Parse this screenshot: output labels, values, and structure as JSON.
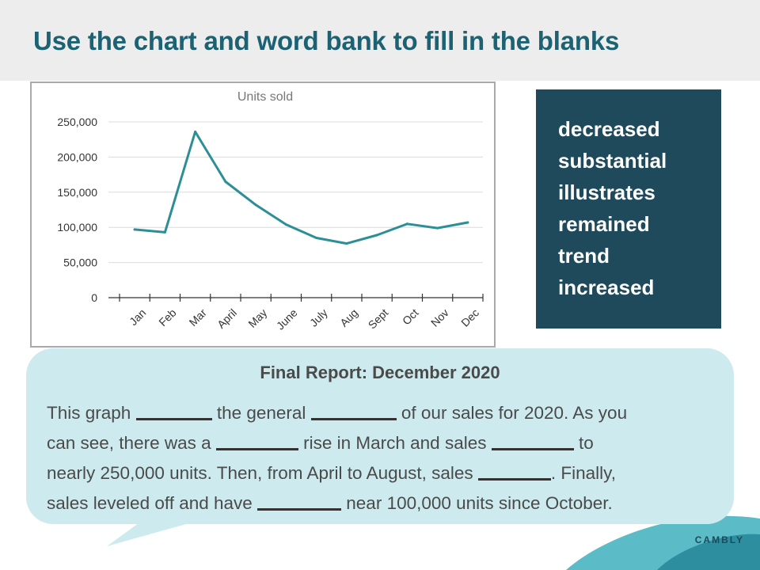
{
  "header": {
    "title": "Use the chart and word bank to fill in the blanks"
  },
  "chart_data": {
    "type": "line",
    "title": "Units sold",
    "categories": [
      "Jan",
      "Feb",
      "Mar",
      "April",
      "May",
      "June",
      "July",
      "Aug",
      "Sept",
      "Oct",
      "Nov",
      "Dec"
    ],
    "series": [
      {
        "values": [
          97000,
          93000,
          236000,
          165000,
          132000,
          104000,
          85000,
          77000,
          89000,
          105000,
          99000,
          107000
        ]
      }
    ],
    "ylim": [
      0,
      250000
    ],
    "yticks": [
      0,
      50000,
      100000,
      150000,
      200000,
      250000
    ],
    "ytick_labels": [
      "0",
      "50,000",
      "100,000",
      "150,000",
      "200,000",
      "250,000"
    ],
    "grid": true,
    "line_color": "#2d8f96"
  },
  "word_bank": {
    "words": [
      "decreased",
      "substantial",
      "illustrates",
      "remained",
      "trend",
      "increased"
    ]
  },
  "report": {
    "title": "Final Report: December 2020",
    "line1": {
      "a": "This graph ",
      "b": " the general ",
      "c": "  of our sales for 2020. As you"
    },
    "line2": {
      "a": "can see, there was a ",
      "b": " rise in March and sales ",
      "c": " to"
    },
    "line3": {
      "a": "nearly 250,000 units. Then, from April to August, sales ",
      "b": ". Finally,"
    },
    "line4": {
      "a": "sales leveled off and have ",
      "b": "  near 100,000 units since October."
    }
  },
  "logo": {
    "text": "CAMBLY"
  },
  "colors": {
    "header_bg": "#ededed",
    "title": "#1c6273",
    "word_bank_bg": "#1e4a5b",
    "bubble_bg": "#cdebee"
  }
}
